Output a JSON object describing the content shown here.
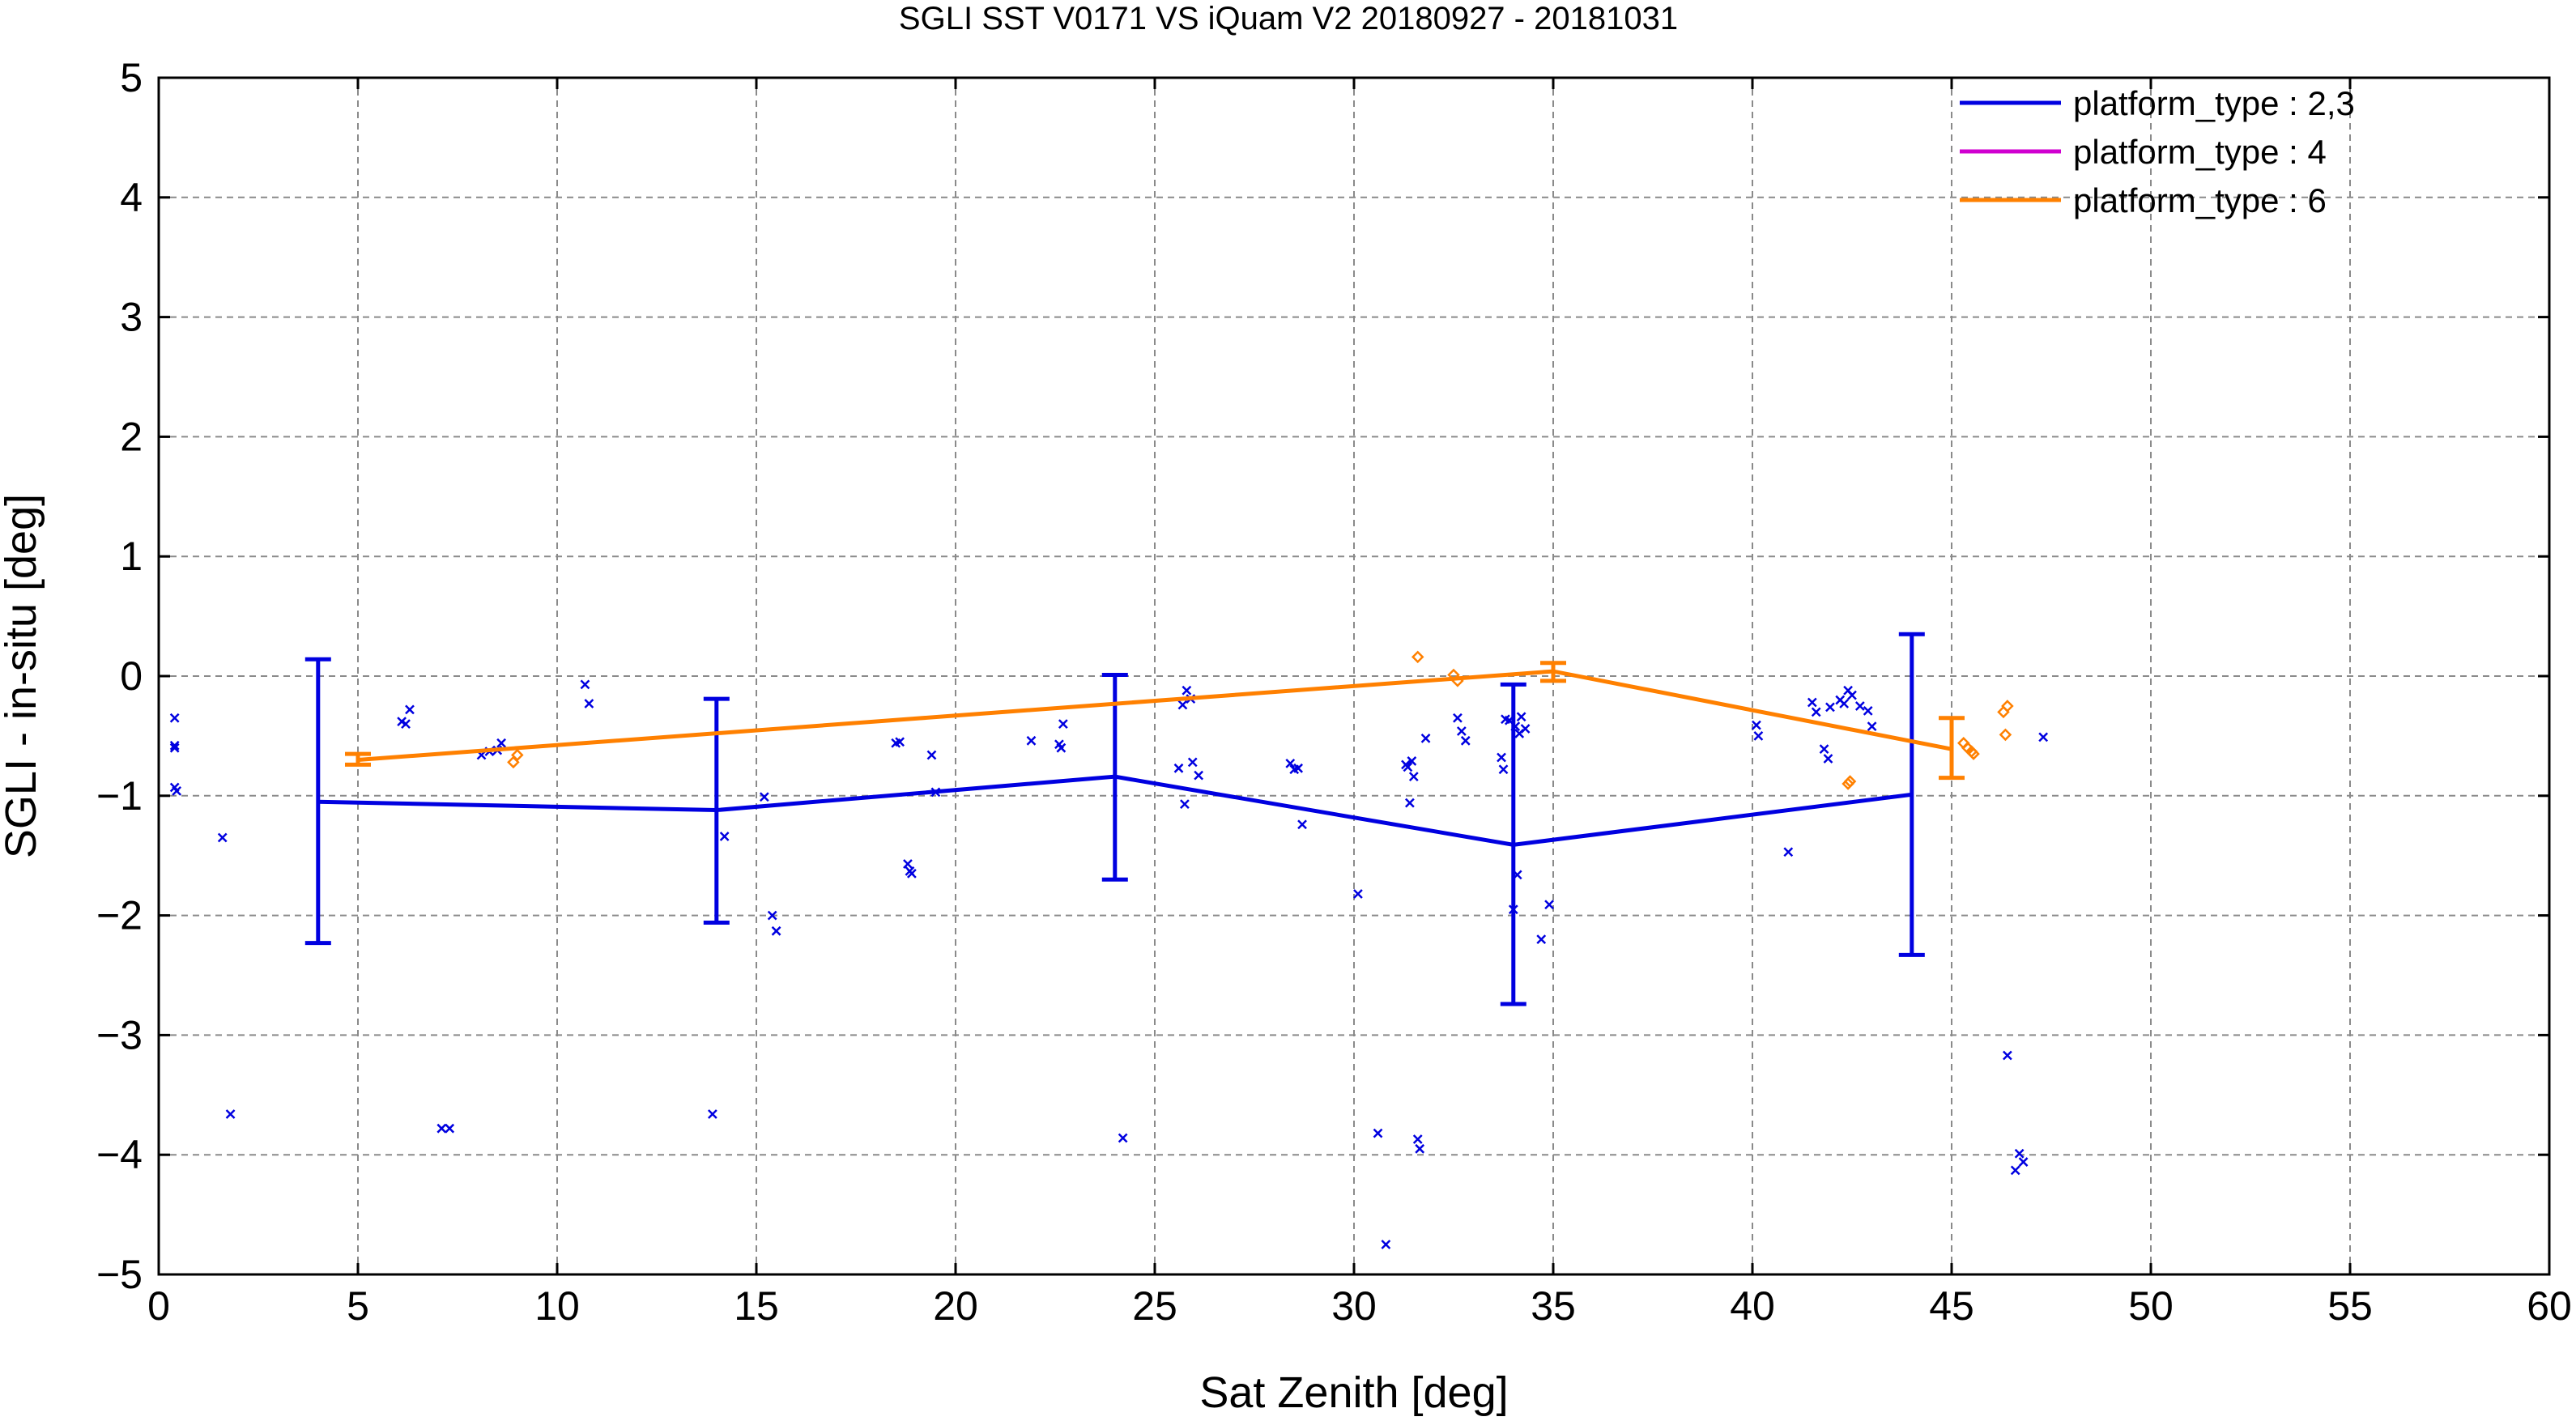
{
  "chart_data": {
    "type": "scatter",
    "title": "SGLI SST V0171 VS iQuam V2 20180927 - 20181031",
    "xlabel": "Sat Zenith [deg]",
    "ylabel": "SGLI - in-situ [deg]",
    "xlim": [
      0,
      60
    ],
    "ylim": [
      -5,
      5
    ],
    "xticks": [
      "0",
      "5",
      "10",
      "15",
      "20",
      "25",
      "30",
      "35",
      "40",
      "45",
      "50",
      "55",
      "60"
    ],
    "yticks": [
      "5",
      "4",
      "3",
      "2",
      "1",
      "0",
      "−1",
      "−2",
      "−3",
      "−4",
      "−5"
    ],
    "grid": true,
    "legend_position": "top-right",
    "series": [
      {
        "name": "platform_type : 2,3",
        "color": "#0000e0",
        "marker": "x",
        "mean_line": {
          "x": [
            4,
            14,
            24,
            34,
            44
          ],
          "y": [
            -1.05,
            -1.12,
            -0.84,
            -1.41,
            -0.99
          ],
          "err_low": [
            -2.23,
            -2.06,
            -1.7,
            -2.74,
            -2.33
          ],
          "err_high": [
            0.14,
            -0.19,
            0.01,
            -0.07,
            0.35
          ]
        },
        "points": [
          [
            0.4,
            -0.35
          ],
          [
            0.4,
            -0.58
          ],
          [
            0.4,
            -0.6
          ],
          [
            0.4,
            -0.93
          ],
          [
            0.45,
            -0.96
          ],
          [
            1.6,
            -1.35
          ],
          [
            1.8,
            -3.66
          ],
          [
            6.1,
            -0.38
          ],
          [
            6.2,
            -0.4
          ],
          [
            6.3,
            -0.28
          ],
          [
            7.1,
            -3.78
          ],
          [
            7.3,
            -3.78
          ],
          [
            8.1,
            -0.66
          ],
          [
            8.3,
            -0.63
          ],
          [
            8.5,
            -0.62
          ],
          [
            8.6,
            -0.56
          ],
          [
            10.7,
            -0.07
          ],
          [
            10.8,
            -0.23
          ],
          [
            13.9,
            -3.66
          ],
          [
            14.2,
            -1.34
          ],
          [
            15.2,
            -1.01
          ],
          [
            15.4,
            -2.0
          ],
          [
            15.5,
            -2.13
          ],
          [
            18.5,
            -0.56
          ],
          [
            18.6,
            -0.55
          ],
          [
            18.8,
            -1.57
          ],
          [
            18.85,
            -1.63
          ],
          [
            18.9,
            -1.65
          ],
          [
            19.4,
            -0.66
          ],
          [
            19.5,
            -0.97
          ],
          [
            21.9,
            -0.54
          ],
          [
            22.6,
            -0.57
          ],
          [
            22.65,
            -0.6
          ],
          [
            22.7,
            -0.4
          ],
          [
            24.2,
            -3.86
          ],
          [
            25.6,
            -0.77
          ],
          [
            25.7,
            -0.24
          ],
          [
            25.75,
            -1.07
          ],
          [
            25.8,
            -0.12
          ],
          [
            25.9,
            -0.19
          ],
          [
            25.95,
            -0.72
          ],
          [
            26.1,
            -0.83
          ],
          [
            28.4,
            -0.73
          ],
          [
            28.5,
            -0.78
          ],
          [
            28.6,
            -0.77
          ],
          [
            28.7,
            -1.24
          ],
          [
            30.1,
            -1.82
          ],
          [
            30.6,
            -3.82
          ],
          [
            30.8,
            -4.75
          ],
          [
            31.3,
            -0.74
          ],
          [
            31.35,
            -0.76
          ],
          [
            31.4,
            -1.06
          ],
          [
            31.45,
            -0.71
          ],
          [
            31.5,
            -0.84
          ],
          [
            31.6,
            -3.87
          ],
          [
            31.65,
            -3.95
          ],
          [
            31.8,
            -0.52
          ],
          [
            32.6,
            -0.35
          ],
          [
            32.7,
            -0.46
          ],
          [
            32.8,
            -0.54
          ],
          [
            33.7,
            -0.68
          ],
          [
            33.75,
            -0.78
          ],
          [
            33.8,
            -0.36
          ],
          [
            33.9,
            -0.37
          ],
          [
            34.0,
            -1.95
          ],
          [
            34.05,
            -0.42
          ],
          [
            34.1,
            -1.66
          ],
          [
            34.15,
            -0.48
          ],
          [
            34.2,
            -0.34
          ],
          [
            34.3,
            -0.44
          ],
          [
            34.7,
            -2.2
          ],
          [
            34.9,
            -1.91
          ],
          [
            40.1,
            -0.41
          ],
          [
            40.15,
            -0.5
          ],
          [
            40.9,
            -1.47
          ],
          [
            41.5,
            -0.22
          ],
          [
            41.6,
            -0.3
          ],
          [
            41.8,
            -0.61
          ],
          [
            41.9,
            -0.69
          ],
          [
            41.95,
            -0.26
          ],
          [
            42.2,
            -0.2
          ],
          [
            42.3,
            -0.23
          ],
          [
            42.4,
            -0.12
          ],
          [
            42.5,
            -0.16
          ],
          [
            42.7,
            -0.25
          ],
          [
            42.9,
            -0.29
          ],
          [
            43.0,
            -0.42
          ],
          [
            46.4,
            -3.17
          ],
          [
            46.6,
            -4.13
          ],
          [
            46.7,
            -3.99
          ],
          [
            46.8,
            -4.06
          ],
          [
            47.3,
            -0.51
          ]
        ]
      },
      {
        "name": "platform_type : 4",
        "color": "#d000d0",
        "marker": "o",
        "points": []
      },
      {
        "name": "platform_type : 6",
        "color": "#ff8000",
        "marker": "diamond",
        "mean_line": {
          "x": [
            5,
            35,
            45
          ],
          "y": [
            -0.7,
            0.04,
            -0.61
          ],
          "err_low": [
            -0.74,
            -0.04,
            -0.85
          ],
          "err_high": [
            -0.65,
            0.11,
            -0.35
          ]
        },
        "points": [
          [
            8.9,
            -0.72
          ],
          [
            9.0,
            -0.66
          ],
          [
            31.6,
            0.16
          ],
          [
            32.5,
            0.01
          ],
          [
            32.6,
            -0.04
          ],
          [
            42.4,
            -0.9
          ],
          [
            42.45,
            -0.88
          ],
          [
            45.3,
            -0.56
          ],
          [
            45.4,
            -0.6
          ],
          [
            45.5,
            -0.63
          ],
          [
            45.55,
            -0.65
          ],
          [
            46.3,
            -0.3
          ],
          [
            46.35,
            -0.49
          ],
          [
            46.4,
            -0.25
          ]
        ]
      }
    ]
  }
}
